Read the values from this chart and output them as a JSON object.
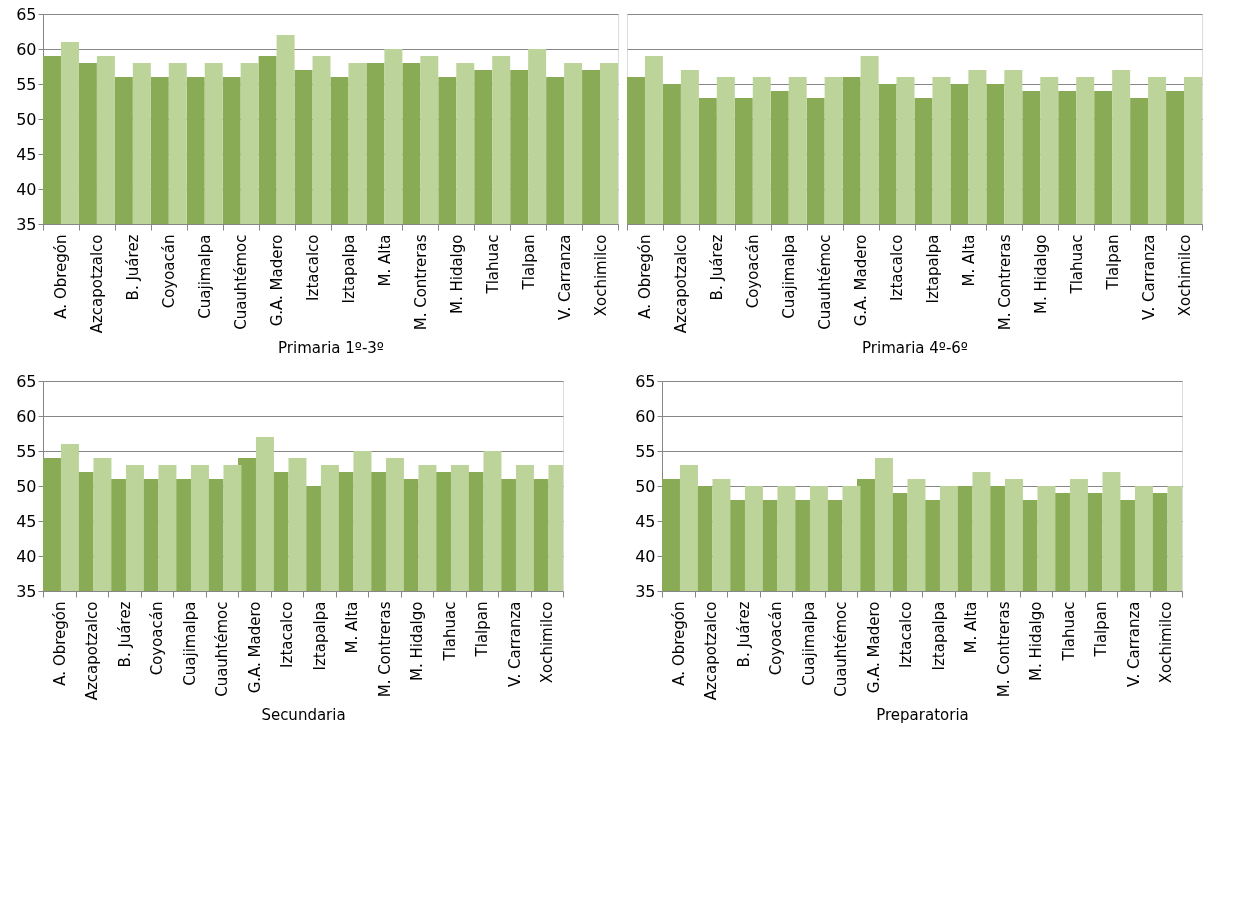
{
  "chart_data": [
    {
      "type": "bar",
      "xlabel": "Primaria 1º-3º",
      "categories": [
        "A. Obregón",
        "Azcapotzalco",
        "B. Juárez",
        "Coyoacán",
        "Cuajimalpa",
        "Cuauhtémoc",
        "G.A. Madero",
        "Iztacalco",
        "Iztapalpa",
        "M. Alta",
        "M. Contreras",
        "M. Hidalgo",
        "Tlahuac",
        "Tlalpan",
        "V. Carranza",
        "Xochimilco"
      ],
      "series": [
        {
          "color": "#8aab55",
          "values": [
            59,
            58,
            56,
            56,
            56,
            56,
            59,
            57,
            56,
            58,
            58,
            56,
            57,
            57,
            56,
            57
          ]
        },
        {
          "color": "#bcd39a",
          "values": [
            61,
            59,
            58,
            58,
            58,
            58,
            62,
            59,
            58,
            60,
            59,
            58,
            59,
            60,
            58,
            58
          ]
        }
      ],
      "ylim": [
        35,
        65
      ],
      "yticks": [
        35,
        40,
        45,
        50,
        55,
        60,
        65
      ],
      "grid": "y"
    },
    {
      "type": "bar",
      "xlabel": "Primaria 4º-6º",
      "categories": [
        "A. Obregón",
        "Azcapotzalco",
        "B. Juárez",
        "Coyoacán",
        "Cuajimalpa",
        "Cuauhtémoc",
        "G.A. Madero",
        "Iztacalco",
        "Iztapalpa",
        "M. Alta",
        "M. Contreras",
        "M. Hidalgo",
        "Tlahuac",
        "Tlalpan",
        "V. Carranza",
        "Xochimilco"
      ],
      "series": [
        {
          "color": "#8aab55",
          "values": [
            56,
            55,
            53,
            53,
            54,
            53,
            56,
            55,
            53,
            55,
            55,
            54,
            54,
            54,
            53,
            54
          ]
        },
        {
          "color": "#bcd39a",
          "values": [
            59,
            57,
            56,
            56,
            56,
            56,
            59,
            56,
            56,
            57,
            57,
            56,
            56,
            57,
            56,
            56
          ]
        }
      ],
      "ylim": [
        35,
        65
      ],
      "yticks": [
        35,
        40,
        45,
        50,
        55,
        60,
        65
      ],
      "grid": "y",
      "tick_labels": "x"
    },
    {
      "type": "bar",
      "xlabel": "Secundaria",
      "categories": [
        "A. Obregón",
        "Azcapotzalco",
        "B. Juárez",
        "Coyoacán",
        "Cuajimalpa",
        "Cuauhtémoc",
        "G.A. Madero",
        "Iztacalco",
        "Iztapalpa",
        "M. Alta",
        "M. Contreras",
        "M. Hidalgo",
        "Tlahuac",
        "Tlalpan",
        "V. Carranza",
        "Xochimilco"
      ],
      "series": [
        {
          "color": "#8aab55",
          "values": [
            54,
            52,
            51,
            51,
            51,
            51,
            54,
            52,
            50,
            52,
            52,
            51,
            52,
            52,
            51,
            51
          ]
        },
        {
          "color": "#bcd39a",
          "values": [
            56,
            54,
            53,
            53,
            53,
            53,
            57,
            54,
            53,
            55,
            54,
            53,
            53,
            55,
            53,
            53
          ]
        }
      ],
      "ylim": [
        35,
        65
      ],
      "yticks": [
        35,
        40,
        45,
        50,
        55,
        60,
        65
      ],
      "grid": "y"
    },
    {
      "type": "bar",
      "xlabel": "Preparatoria",
      "categories": [
        "A. Obregón",
        "Azcapotzalco",
        "B. Juárez",
        "Coyoacán",
        "Cuajimalpa",
        "Cuauhtémoc",
        "G.A. Madero",
        "Iztacalco",
        "Iztapalpa",
        "M. Alta",
        "M. Contreras",
        "M. Hidalgo",
        "Tlahuac",
        "Tlalpan",
        "V. Carranza",
        "Xochimilco"
      ],
      "series": [
        {
          "color": "#8aab55",
          "values": [
            51,
            50,
            48,
            48,
            48,
            48,
            51,
            49,
            48,
            50,
            50,
            48,
            49,
            49,
            48,
            49
          ]
        },
        {
          "color": "#bcd39a",
          "values": [
            53,
            51,
            50,
            50,
            50,
            50,
            54,
            51,
            50,
            52,
            51,
            50,
            51,
            52,
            50,
            50
          ]
        }
      ],
      "ylim": [
        35,
        65
      ],
      "yticks": [
        35,
        40,
        45,
        50,
        55,
        60,
        65
      ],
      "grid": "y"
    }
  ]
}
